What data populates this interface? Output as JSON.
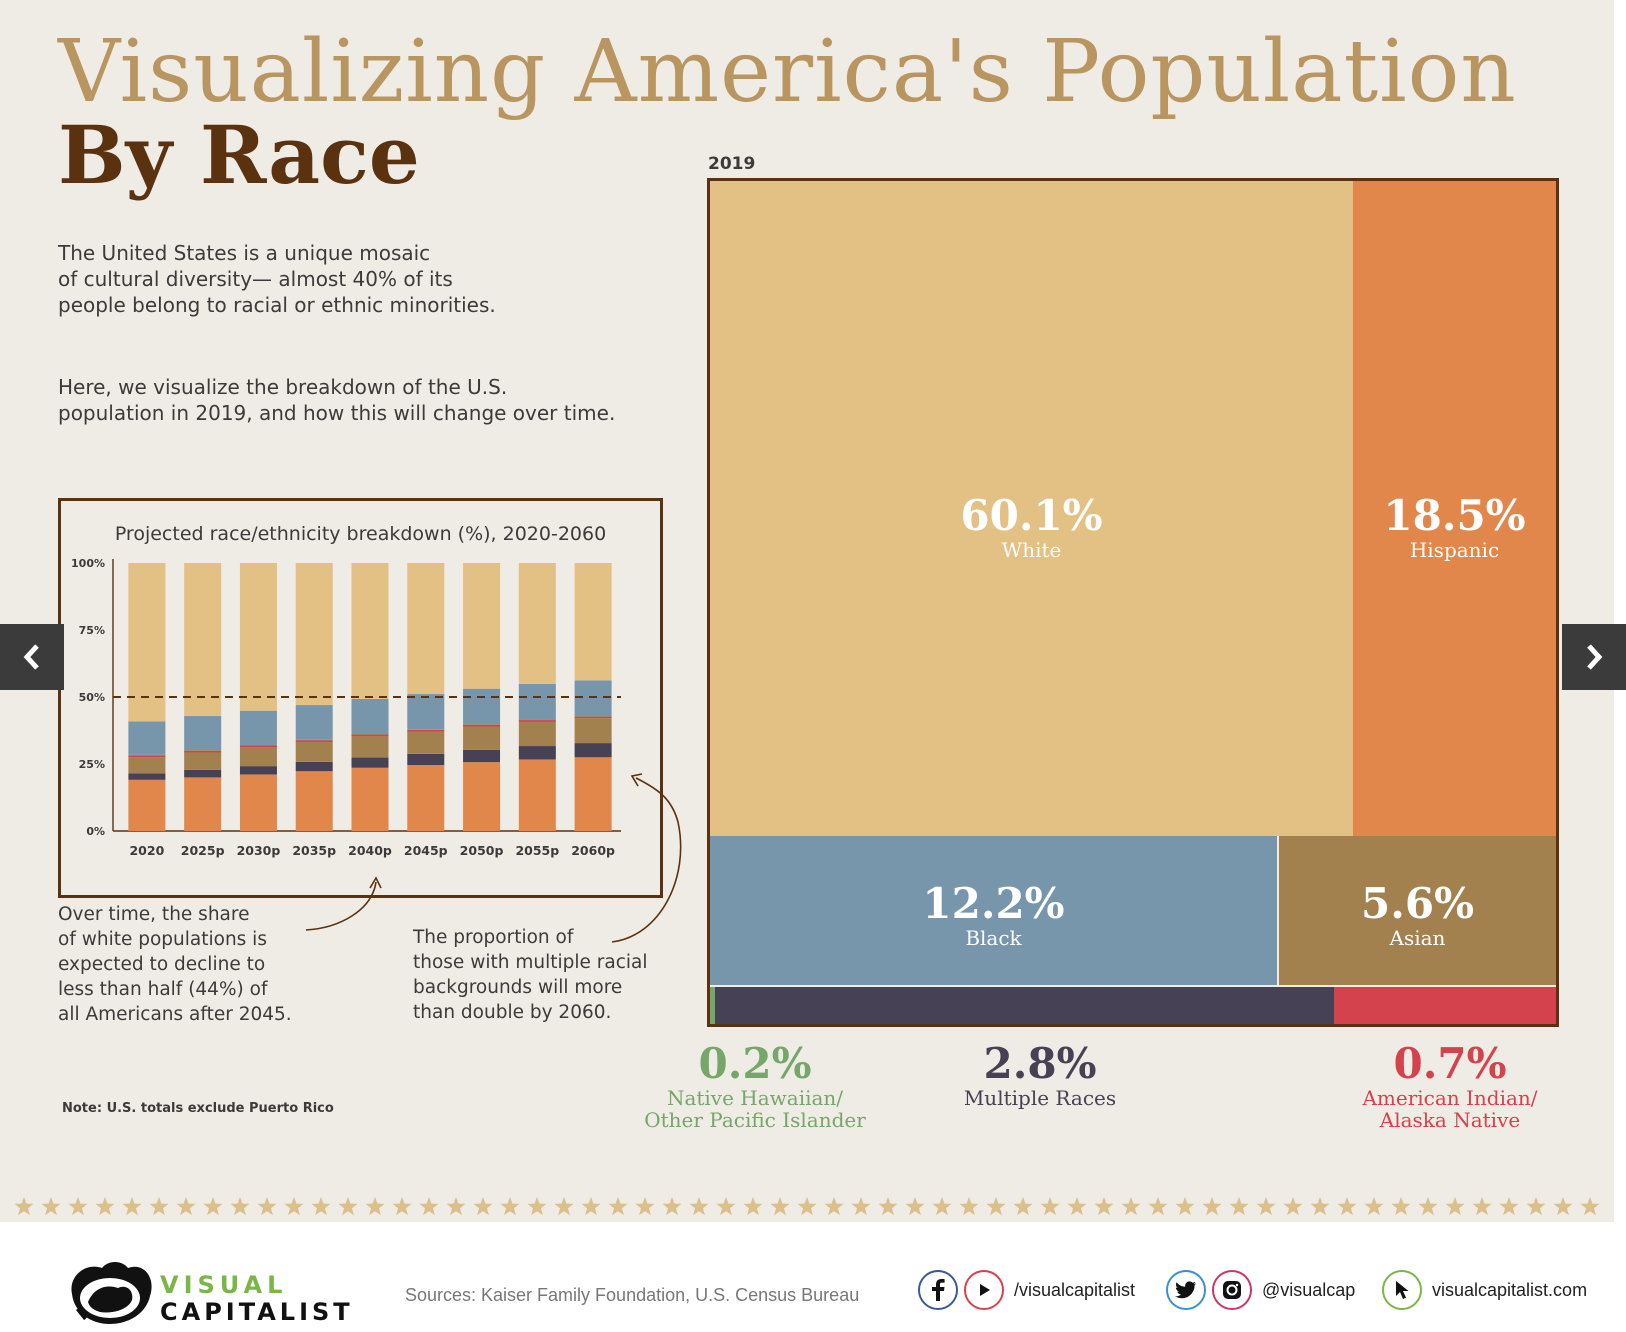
{
  "header": {
    "title_line1": "Visualizing America's Population",
    "title_line2": "By Race"
  },
  "intro": {
    "paragraph1": "The United States is a unique mosaic\nof cultural diversity— almost 40% of its\npeople belong to racial or ethnic minorities.",
    "paragraph2": "Here, we visualize the breakdown of the U.S.\npopulation in 2019, and how this will change over time."
  },
  "annotations": {
    "white_decline": "Over time, the share\nof white populations is\nexpected to decline to\nless than half (44%) of\nall Americans after 2045.",
    "multiple_races": "The proportion of\nthose with multiple racial\nbackgrounds will more\nthan double by 2060."
  },
  "note": "Note: U.S. totals exclude Puerto Rico",
  "colors": {
    "white": "#e3c184",
    "hispanic": "#e2874b",
    "black": "#7796ab",
    "asian": "#a3814f",
    "multiple": "#474155",
    "american_indian": "#d4424d",
    "native_hawaiian": "#77a66b"
  },
  "chart_data": [
    {
      "type": "bar",
      "stacked": true,
      "title": "Projected race/ethnicity breakdown (%), 2020-2060",
      "categories": [
        "2020",
        "2025p",
        "2030p",
        "2035p",
        "2040p",
        "2045p",
        "2050p",
        "2055p",
        "2060p"
      ],
      "y_ticks": [
        "0%",
        "25%",
        "50%",
        "75%",
        "100%"
      ],
      "ylim": [
        0,
        100
      ],
      "reference_line": 50,
      "series": [
        {
          "key": "hispanic",
          "values": [
            19.1,
            20.0,
            21.1,
            22.3,
            23.6,
            24.6,
            25.7,
            26.7,
            27.5
          ]
        },
        {
          "key": "multiple",
          "values": [
            2.4,
            2.8,
            3.1,
            3.5,
            3.8,
            4.2,
            4.6,
            5.0,
            5.3
          ]
        },
        {
          "key": "asian",
          "values": [
            6.0,
            6.5,
            7.0,
            7.4,
            7.9,
            8.3,
            8.7,
            9.0,
            9.3
          ]
        },
        {
          "key": "american_indian",
          "values": [
            0.7,
            0.7,
            0.7,
            0.7,
            0.7,
            0.7,
            0.7,
            0.7,
            0.6
          ]
        },
        {
          "key": "native_hawaiian",
          "values": [
            0.2,
            0.2,
            0.2,
            0.2,
            0.2,
            0.2,
            0.2,
            0.2,
            0.2
          ]
        },
        {
          "key": "black",
          "values": [
            12.5,
            12.7,
            12.8,
            12.9,
            13.1,
            13.1,
            13.2,
            13.3,
            13.3
          ]
        },
        {
          "key": "white",
          "values": [
            59.1,
            57.1,
            55.1,
            53.0,
            50.7,
            48.9,
            46.9,
            45.1,
            43.8
          ]
        }
      ]
    },
    {
      "type": "treemap",
      "title": "2019",
      "segments": [
        {
          "key": "white",
          "name": "White",
          "value": 60.1,
          "label": "60.1%"
        },
        {
          "key": "hispanic",
          "name": "Hispanic",
          "value": 18.5,
          "label": "18.5%"
        },
        {
          "key": "black",
          "name": "Black",
          "value": 12.2,
          "label": "12.2%"
        },
        {
          "key": "asian",
          "name": "Asian",
          "value": 5.6,
          "label": "5.6%"
        },
        {
          "key": "native_hawaiian",
          "name": "Native Hawaiian/\nOther Pacific Islander",
          "value": 0.2,
          "label": "0.2%"
        },
        {
          "key": "multiple",
          "name": "Multiple Races",
          "value": 2.8,
          "label": "2.8%"
        },
        {
          "key": "american_indian",
          "name": "American Indian/\nAlaska Native",
          "value": 0.7,
          "label": "0.7%"
        }
      ]
    }
  ],
  "footer": {
    "logo_line1": "VISUAL",
    "logo_line2": "CAPITALIST",
    "sources": "Sources: Kaiser Family Foundation, U.S. Census Bureau",
    "fb_yt_handle": "/visualcapitalist",
    "tw_ig_handle": "@visualcap",
    "website": "visualcapitalist.com"
  },
  "nav": {
    "prev_icon": "chevron-left-icon",
    "next_icon": "chevron-right-icon"
  }
}
